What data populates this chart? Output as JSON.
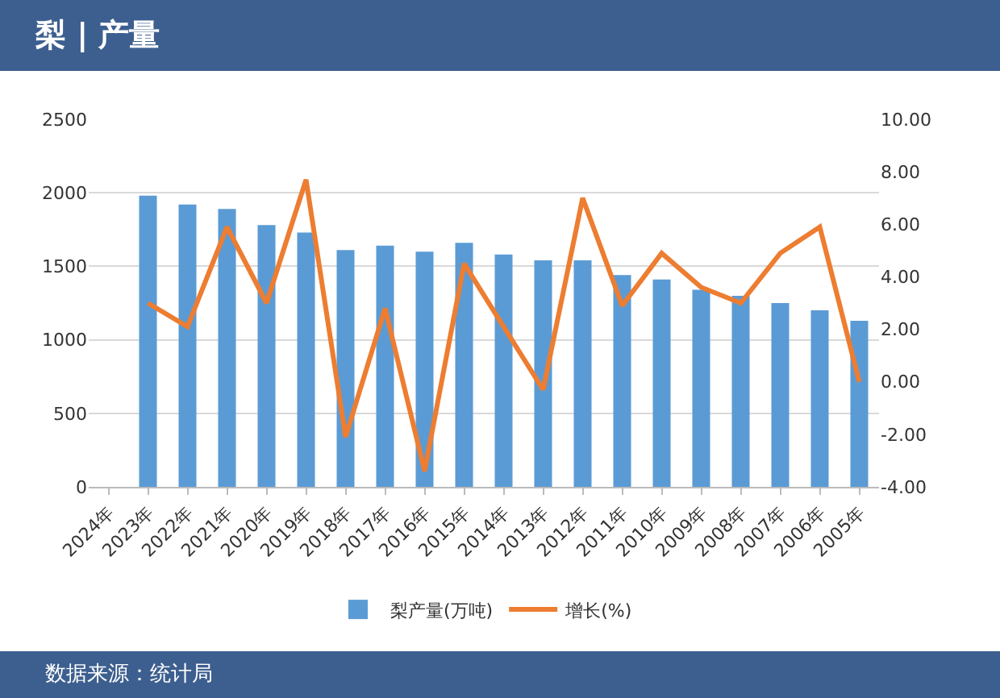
{
  "chart_data": {
    "type": "bar",
    "title": "梨 | 产量",
    "annotations": [
      "数据来源：统计局"
    ],
    "categories": [
      "2024年",
      "2023年",
      "2022年",
      "2021年",
      "2020年",
      "2019年",
      "2018年",
      "2017年",
      "2016年",
      "2015年",
      "2014年",
      "2013年",
      "2012年",
      "2011年",
      "2010年",
      "2009年",
      "2008年",
      "2007年",
      "2006年",
      "2005年"
    ],
    "series": [
      {
        "name": "梨产量(万吨)",
        "color": "#5b9bd5",
        "values": [
          null,
          1980,
          1920,
          1890,
          1780,
          1730,
          1610,
          1640,
          1600,
          1660,
          1580,
          1540,
          1540,
          1440,
          1410,
          1340,
          1300,
          1250,
          1200,
          1130
        ]
      },
      {
        "name": "增长(%)",
        "type": "line",
        "axis": "y2",
        "color": "#ed7d31",
        "values": [
          null,
          3.0,
          2.1,
          5.9,
          3.0,
          7.7,
          -2.1,
          2.8,
          -3.4,
          4.5,
          2.1,
          -0.3,
          7.0,
          2.9,
          4.9,
          3.6,
          3.0,
          4.9,
          5.9,
          0.0
        ]
      }
    ],
    "ylim": [
      0,
      2500
    ],
    "yticks": [
      0,
      500,
      1000,
      1500,
      2000,
      2500
    ],
    "y2lim": [
      -4,
      10
    ],
    "y2ticks": [
      {
        "value": -4,
        "label": "-4.00"
      },
      {
        "value": -2,
        "label": "-2.00"
      },
      {
        "value": 0,
        "label": "0.00"
      },
      {
        "value": 2,
        "label": "2.00"
      },
      {
        "value": 4,
        "label": "4.00"
      },
      {
        "value": 6,
        "label": "6.00"
      },
      {
        "value": 8,
        "label": "8.00"
      },
      {
        "value": 10,
        "label": "10.00"
      }
    ],
    "grid": "y",
    "legend": "bottom",
    "marker": "none",
    "line_style": "solid"
  }
}
